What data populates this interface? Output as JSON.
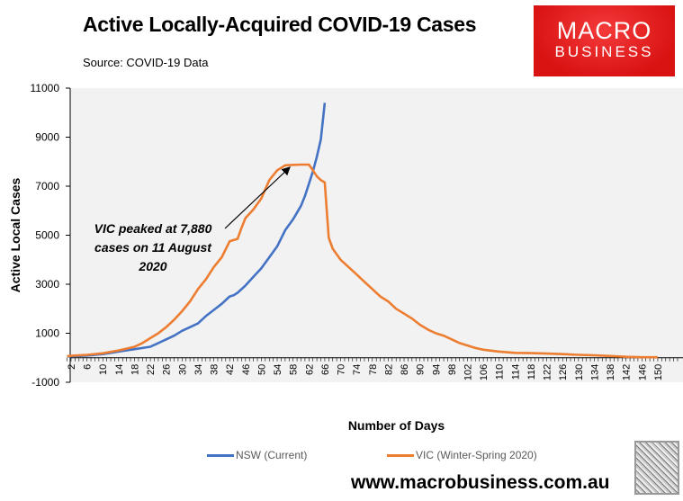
{
  "title": "Active Locally-Acquired COVID-19 Cases",
  "subtitle": "Source: COVID-19 Data",
  "logo": {
    "line1": "MACRO",
    "line2": "BUSINESS"
  },
  "website": "www.macrobusiness.com.au",
  "chart_data": {
    "type": "line",
    "title": "Active Locally-Acquired COVID-19 Cases",
    "xlabel": "Number of Days",
    "ylabel": "Active Local Cases",
    "ylim": [
      -1000,
      11000
    ],
    "xlim": [
      1,
      155
    ],
    "yticks": [
      -1000,
      1000,
      3000,
      5000,
      7000,
      9000,
      11000
    ],
    "xticks": [
      2,
      6,
      10,
      14,
      18,
      22,
      26,
      30,
      34,
      38,
      42,
      46,
      50,
      54,
      58,
      62,
      66,
      70,
      74,
      78,
      82,
      86,
      90,
      94,
      98,
      102,
      106,
      110,
      114,
      118,
      122,
      126,
      130,
      134,
      138,
      142,
      146,
      150
    ],
    "grid": false,
    "legend_position": "bottom",
    "annotation": {
      "lines": [
        "VIC peaked at 7,880",
        "cases on 11 August",
        "2020"
      ],
      "points_to": {
        "x": 60,
        "y": 7880
      }
    },
    "series": [
      {
        "name": "NSW (Current)",
        "color": "#4472c4",
        "x": [
          1,
          2,
          6,
          10,
          14,
          18,
          20,
          22,
          24,
          26,
          28,
          30,
          32,
          34,
          36,
          38,
          40,
          42,
          43,
          44,
          46,
          48,
          50,
          52,
          54,
          56,
          58,
          60,
          61,
          62,
          63,
          64,
          65,
          66
        ],
        "y": [
          50,
          60,
          90,
          150,
          250,
          350,
          400,
          450,
          600,
          750,
          900,
          1100,
          1250,
          1400,
          1700,
          1950,
          2200,
          2500,
          2550,
          2650,
          2950,
          3300,
          3650,
          4100,
          4550,
          5200,
          5650,
          6200,
          6600,
          7100,
          7600,
          8200,
          8900,
          10400
        ]
      },
      {
        "name": "VIC (Winter-Spring 2020)",
        "color": "#ed7d31",
        "x": [
          1,
          2,
          6,
          10,
          14,
          18,
          20,
          22,
          24,
          26,
          28,
          30,
          32,
          34,
          36,
          38,
          40,
          42,
          43,
          44,
          45,
          46,
          48,
          50,
          52,
          54,
          56,
          58,
          60,
          61,
          62,
          63,
          64,
          65,
          66,
          67,
          68,
          70,
          72,
          74,
          76,
          78,
          80,
          82,
          84,
          86,
          88,
          90,
          92,
          94,
          96,
          98,
          100,
          102,
          104,
          106,
          110,
          114,
          118,
          122,
          126,
          130,
          134,
          138,
          142,
          146,
          150
        ],
        "y": [
          60,
          80,
          120,
          180,
          300,
          450,
          600,
          800,
          1000,
          1250,
          1550,
          1900,
          2300,
          2800,
          3200,
          3700,
          4100,
          4750,
          4800,
          4850,
          5300,
          5700,
          6050,
          6500,
          7250,
          7650,
          7850,
          7870,
          7880,
          7880,
          7880,
          7650,
          7400,
          7250,
          7150,
          4900,
          4450,
          4000,
          3700,
          3400,
          3100,
          2800,
          2500,
          2300,
          2000,
          1800,
          1600,
          1350,
          1150,
          1000,
          900,
          750,
          600,
          500,
          400,
          330,
          250,
          200,
          190,
          170,
          150,
          120,
          100,
          70,
          40,
          20,
          20
        ]
      }
    ]
  }
}
